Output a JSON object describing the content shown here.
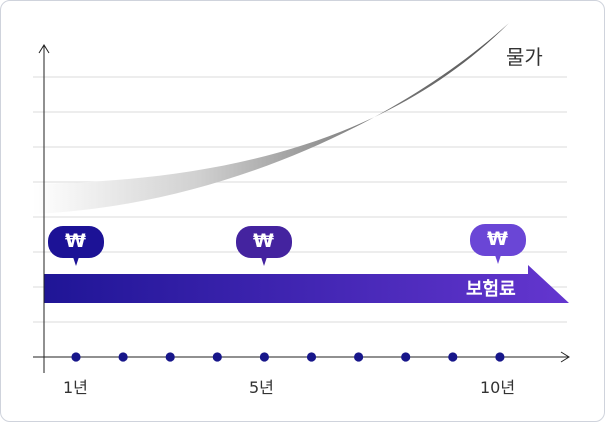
{
  "labels": {
    "price": "물가",
    "premium": "보험료",
    "currency_symbol": "₩",
    "ticks": [
      "1년",
      "5년",
      "10년"
    ]
  },
  "colors": {
    "bubble_year1": "#1c1296",
    "bubble_year5": "#44239f",
    "bubble_year10": "#6a46d6",
    "band_start": "#1f1596",
    "band_end": "#6436cf",
    "dot": "#17168a"
  },
  "timeline_points": 10
}
